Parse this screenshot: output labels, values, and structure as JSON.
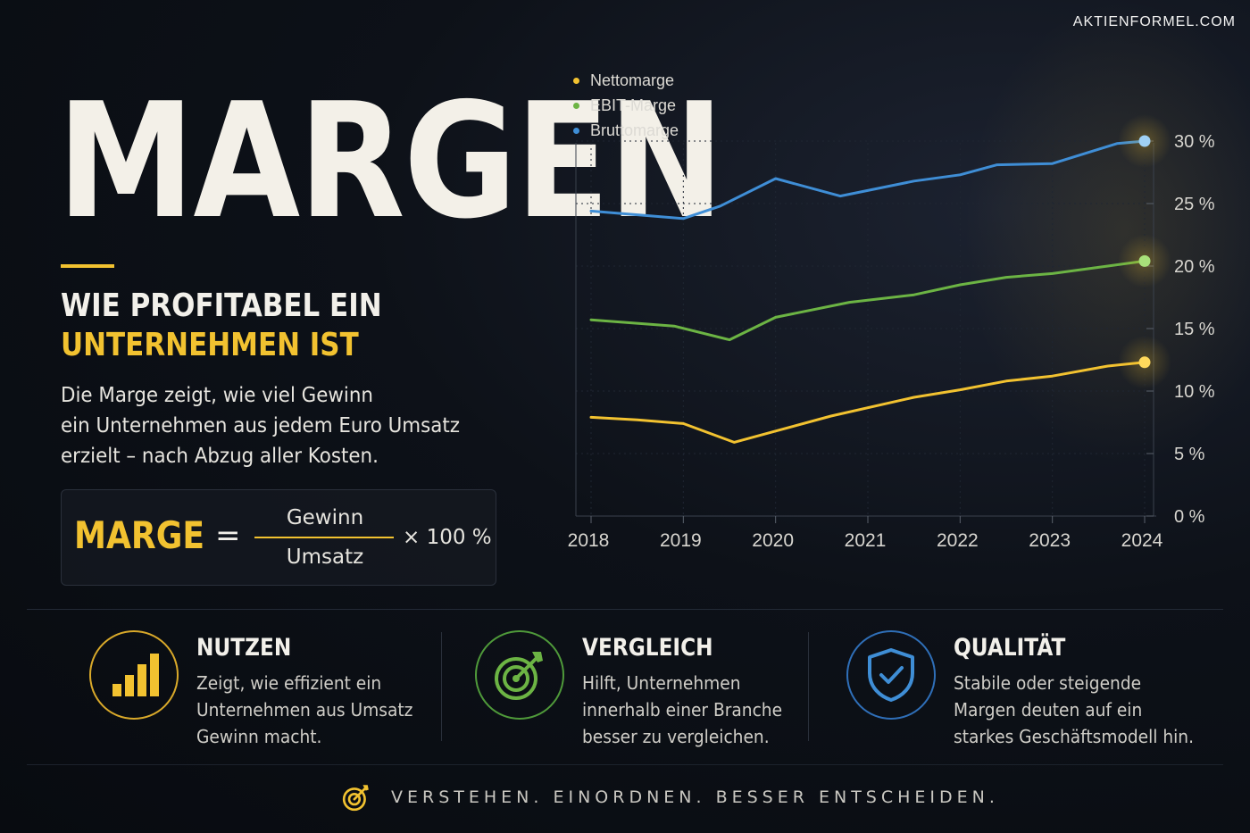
{
  "brand": "AKTIENFORMEL.COM",
  "headline": "MARGEN",
  "subheadline_line1": "WIE PROFITABEL EIN",
  "subheadline_line2": "UNTERNEHMEN IST",
  "description_lines": [
    "Die Marge zeigt, wie viel Gewinn",
    "ein Unternehmen aus jedem Euro Umsatz",
    "erzielt – nach Abzug aller Kosten."
  ],
  "formula": {
    "term": "MARGE",
    "equals": "=",
    "numerator": "Gewinn",
    "denominator": "Umsatz",
    "multiplier": "× 100 %"
  },
  "colors": {
    "accent": "#f2c230",
    "netto": "#f2c230",
    "ebit": "#6cb444",
    "brutto": "#3f8ed6",
    "nutzen_ring": "#d9a92a",
    "vergleich_ring": "#4f9a3a",
    "qualitaet_ring": "#2f6fb8"
  },
  "chart_data": {
    "type": "line",
    "title": "",
    "xlabel": "",
    "ylabel": "",
    "x_ticks": [
      "2018",
      "2019",
      "2020",
      "2021",
      "2022",
      "2023",
      "2024"
    ],
    "y_ticks": [
      "0 %",
      "5 %",
      "10 %",
      "15 %",
      "20 %",
      "25 %",
      "30 %"
    ],
    "xlim": [
      2018,
      2024
    ],
    "ylim": [
      0,
      30
    ],
    "y_axis_side": "right",
    "grid": true,
    "legend_position": "top-left",
    "series": [
      {
        "name": "Bruttomarge",
        "color": "#3f8ed6",
        "x": [
          2018.0,
          2019.0,
          2019.4,
          2020.0,
          2020.7,
          2021.5,
          2022.0,
          2022.4,
          2023.0,
          2023.7,
          2024.0
        ],
        "y": [
          24.4,
          23.8,
          24.8,
          27.0,
          25.6,
          26.8,
          27.3,
          28.1,
          28.2,
          29.8,
          30.0
        ]
      },
      {
        "name": "EBIT-Marge",
        "color": "#6cb444",
        "x": [
          2018.0,
          2018.9,
          2019.5,
          2020.0,
          2020.8,
          2021.5,
          2022.0,
          2022.5,
          2023.0,
          2023.6,
          2024.0
        ],
        "y": [
          15.7,
          15.2,
          14.1,
          15.9,
          17.1,
          17.7,
          18.5,
          19.1,
          19.4,
          20.0,
          20.4
        ]
      },
      {
        "name": "Nettomarge",
        "color": "#f2c230",
        "x": [
          2018.0,
          2018.5,
          2019.0,
          2019.55,
          2020.0,
          2020.6,
          2021.5,
          2022.0,
          2022.5,
          2023.0,
          2023.6,
          2024.0
        ],
        "y": [
          7.9,
          7.7,
          7.4,
          5.9,
          6.8,
          8.0,
          9.5,
          10.1,
          10.8,
          11.2,
          12.0,
          12.3
        ]
      }
    ],
    "highlight_endpoints": true
  },
  "features": [
    {
      "icon": "bar-chart-icon",
      "title": "NUTZEN",
      "lines": [
        "Zeigt, wie effizient ein",
        "Unternehmen aus Umsatz",
        "Gewinn macht."
      ]
    },
    {
      "icon": "target-icon",
      "title": "VERGLEICH",
      "lines": [
        "Hilft, Unternehmen",
        "innerhalb einer Branche",
        "besser zu vergleichen."
      ]
    },
    {
      "icon": "shield-check-icon",
      "title": "QUALITÄT",
      "lines": [
        "Stabile oder steigende",
        "Margen deuten auf ein",
        "starkes Geschäftsmodell hin."
      ]
    }
  ],
  "footer": {
    "icon": "target-icon",
    "tagline": "VERSTEHEN. EINORDNEN. BESSER ENTSCHEIDEN."
  }
}
